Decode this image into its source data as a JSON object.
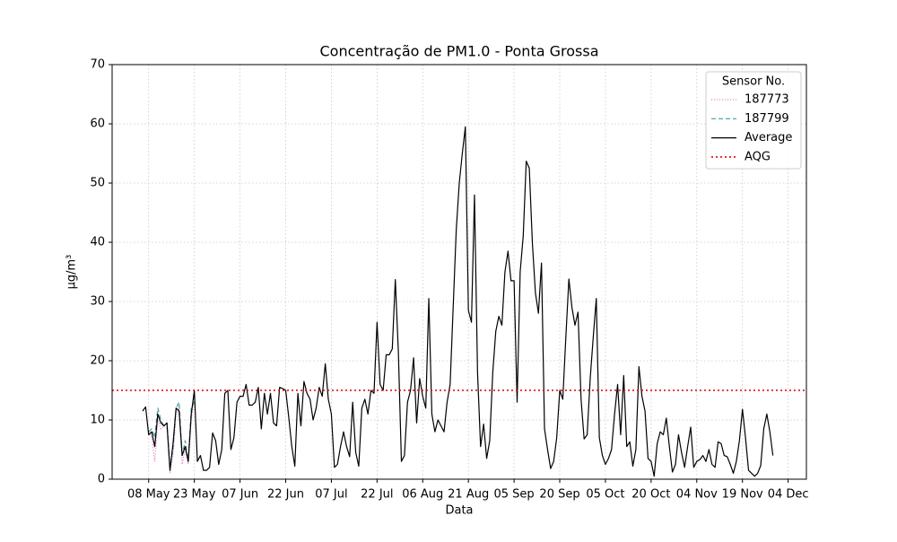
{
  "chart_data": {
    "type": "line",
    "title": "Concentração de PM1.0 - Ponta Grossa",
    "x_label": "Data",
    "y_label": "µg/m³",
    "legend_title": "Sensor No.",
    "legend": "upper right",
    "grid": true,
    "xlim": [
      "26 Apr",
      "10 Dec"
    ],
    "xticks": [
      "08 May",
      "23 May",
      "07 Jun",
      "22 Jun",
      "07 Jul",
      "22 Jul",
      "06 Aug",
      "21 Aug",
      "05 Sep",
      "20 Sep",
      "05 Oct",
      "20 Oct",
      "04 Nov",
      "19 Nov",
      "04 Dec"
    ],
    "ylim": [
      0,
      70
    ],
    "yticks": [
      0,
      10,
      20,
      30,
      40,
      50,
      60,
      70
    ],
    "x": [
      "06 May",
      "07 May",
      "08 May",
      "09 May",
      "10 May",
      "11 May",
      "12 May",
      "13 May",
      "14 May",
      "15 May",
      "16 May",
      "17 May",
      "18 May",
      "19 May",
      "20 May",
      "21 May",
      "22 May",
      "23 May",
      "24 May",
      "25 May",
      "26 May",
      "27 May",
      "28 May",
      "29 May",
      "30 May",
      "31 May",
      "01 Jun",
      "02 Jun",
      "03 Jun",
      "04 Jun",
      "05 Jun",
      "06 Jun",
      "07 Jun",
      "08 Jun",
      "09 Jun",
      "10 Jun",
      "11 Jun",
      "12 Jun",
      "13 Jun",
      "14 Jun",
      "15 Jun",
      "16 Jun",
      "17 Jun",
      "18 Jun",
      "19 Jun",
      "20 Jun",
      "21 Jun",
      "22 Jun",
      "23 Jun",
      "24 Jun",
      "25 Jun",
      "26 Jun",
      "27 Jun",
      "28 Jun",
      "29 Jun",
      "30 Jun",
      "01 Jul",
      "02 Jul",
      "03 Jul",
      "04 Jul",
      "05 Jul",
      "06 Jul",
      "07 Jul",
      "08 Jul",
      "09 Jul",
      "10 Jul",
      "11 Jul",
      "12 Jul",
      "13 Jul",
      "14 Jul",
      "15 Jul",
      "16 Jul",
      "17 Jul",
      "18 Jul",
      "19 Jul",
      "20 Jul",
      "21 Jul",
      "22 Jul",
      "23 Jul",
      "24 Jul",
      "25 Jul",
      "26 Jul",
      "27 Jul",
      "28 Jul",
      "29 Jul",
      "30 Jul",
      "31 Jul",
      "01 Aug",
      "02 Aug",
      "03 Aug",
      "04 Aug",
      "05 Aug",
      "06 Aug",
      "07 Aug",
      "08 Aug",
      "09 Aug",
      "10 Aug",
      "11 Aug",
      "12 Aug",
      "13 Aug",
      "14 Aug",
      "15 Aug",
      "16 Aug",
      "17 Aug",
      "18 Aug",
      "19 Aug",
      "20 Aug",
      "21 Aug",
      "22 Aug",
      "23 Aug",
      "24 Aug",
      "25 Aug",
      "26 Aug",
      "27 Aug",
      "28 Aug",
      "29 Aug",
      "30 Aug",
      "31 Aug",
      "01 Sep",
      "02 Sep",
      "03 Sep",
      "04 Sep",
      "05 Sep",
      "06 Sep",
      "07 Sep",
      "08 Sep",
      "09 Sep",
      "10 Sep",
      "11 Sep",
      "12 Sep",
      "13 Sep",
      "14 Sep",
      "15 Sep",
      "16 Sep",
      "17 Sep",
      "18 Sep",
      "19 Sep",
      "20 Sep",
      "21 Sep",
      "22 Sep",
      "23 Sep",
      "24 Sep",
      "25 Sep",
      "26 Sep",
      "27 Sep",
      "28 Sep",
      "29 Sep",
      "30 Sep",
      "01 Oct",
      "02 Oct",
      "03 Oct",
      "04 Oct",
      "05 Oct",
      "06 Oct",
      "07 Oct",
      "08 Oct",
      "09 Oct",
      "10 Oct",
      "11 Oct",
      "12 Oct",
      "13 Oct",
      "14 Oct",
      "15 Oct",
      "16 Oct",
      "17 Oct",
      "18 Oct",
      "19 Oct",
      "20 Oct",
      "21 Oct",
      "22 Oct",
      "23 Oct",
      "24 Oct",
      "25 Oct",
      "26 Oct",
      "27 Oct",
      "28 Oct",
      "29 Oct",
      "30 Oct",
      "31 Oct",
      "01 Nov",
      "02 Nov",
      "03 Nov",
      "04 Nov",
      "05 Nov",
      "06 Nov",
      "07 Nov",
      "08 Nov",
      "09 Nov",
      "10 Nov",
      "11 Nov",
      "12 Nov",
      "13 Nov",
      "14 Nov",
      "15 Nov",
      "16 Nov",
      "17 Nov",
      "18 Nov",
      "19 Nov",
      "20 Nov",
      "21 Nov",
      "22 Nov",
      "23 Nov",
      "24 Nov",
      "25 Nov",
      "26 Nov",
      "27 Nov",
      "28 Nov",
      "29 Nov"
    ],
    "series": [
      {
        "name": "187773",
        "color": "#e377c2",
        "dash": "1,2",
        "x": [
          "08 May",
          "09 May",
          "10 May",
          "11 May",
          "12 May",
          "13 May",
          "14 May",
          "15 May",
          "16 May",
          "17 May",
          "18 May",
          "19 May",
          "20 May",
          "21 May",
          "22 May",
          "23 May"
        ],
        "values": [
          8,
          7,
          3,
          10,
          8.5,
          9,
          8.5,
          1,
          4,
          11,
          12,
          2.5,
          5,
          2.5,
          10,
          14
        ]
      },
      {
        "name": "187799",
        "color": "#4a9a9e",
        "dash": "5,3",
        "x": [
          "08 May",
          "09 May",
          "10 May",
          "11 May",
          "12 May",
          "13 May",
          "14 May",
          "15 May",
          "16 May",
          "17 May",
          "18 May",
          "19 May",
          "20 May",
          "21 May",
          "22 May",
          "23 May"
        ],
        "values": [
          8,
          8.5,
          7,
          12,
          10,
          9,
          9.5,
          2,
          5,
          12,
          13,
          4,
          6.5,
          3,
          12,
          13
        ]
      },
      {
        "name": "Average",
        "color": "#000000",
        "values": [
          11.5,
          12.2,
          7.5,
          8,
          5.5,
          11,
          9.5,
          9,
          9.5,
          1.5,
          6,
          12,
          11.5,
          4,
          5.5,
          3,
          11,
          15,
          3,
          4,
          1.5,
          1.5,
          2,
          7.8,
          6.5,
          2.5,
          5,
          14.5,
          15,
          5,
          7,
          13,
          14,
          14,
          16,
          12.5,
          12.5,
          13,
          15.5,
          8.5,
          14.5,
          11,
          14.5,
          9.5,
          9,
          15.5,
          15.3,
          15,
          10.5,
          5.5,
          2.2,
          14.5,
          9,
          16.5,
          14.5,
          13.5,
          10,
          12,
          15.5,
          14,
          19.5,
          13.5,
          11,
          2,
          2.5,
          5.5,
          8,
          5.5,
          3.8,
          13,
          4.5,
          2.2,
          12,
          13.5,
          11,
          15,
          14.5,
          26.5,
          16,
          15,
          21,
          21,
          22,
          33.7,
          21.5,
          3,
          4,
          13,
          15,
          20.5,
          9.5,
          17,
          14,
          12,
          30.5,
          11,
          8,
          10,
          9,
          8,
          13,
          16,
          29,
          42,
          50,
          55,
          59.5,
          28.5,
          26.5,
          48,
          18,
          5.5,
          9.3,
          3.5,
          6.5,
          18,
          25,
          27.5,
          26,
          35,
          38.5,
          33.5,
          33.5,
          13,
          35,
          41,
          53.7,
          52.5,
          40,
          31.5,
          28,
          36.5,
          8.5,
          5,
          1.8,
          3,
          7,
          15,
          13.5,
          24,
          33.8,
          29,
          26,
          28.2,
          13.5,
          6.8,
          7.5,
          17,
          24,
          30.5,
          7,
          4,
          2.5,
          3.5,
          5,
          11,
          16,
          7.5,
          17.5,
          5.5,
          6.3,
          2.2,
          5,
          19,
          14,
          11.5,
          3.5,
          3,
          0.5,
          6,
          8,
          7.5,
          10.3,
          5.5,
          1.2,
          2.5,
          7.5,
          4.5,
          2,
          5.5,
          8.8,
          2,
          3,
          3.3,
          4,
          3,
          5,
          2.5,
          2,
          6.3,
          6,
          4,
          3.8,
          2.5,
          1,
          3,
          6.5,
          11.8,
          7,
          1.5,
          1,
          0.5,
          1,
          2.3,
          8.5,
          11,
          8,
          4
        ]
      }
    ],
    "aqg": {
      "name": "AQG",
      "value": 15,
      "color": "#e00000"
    }
  }
}
